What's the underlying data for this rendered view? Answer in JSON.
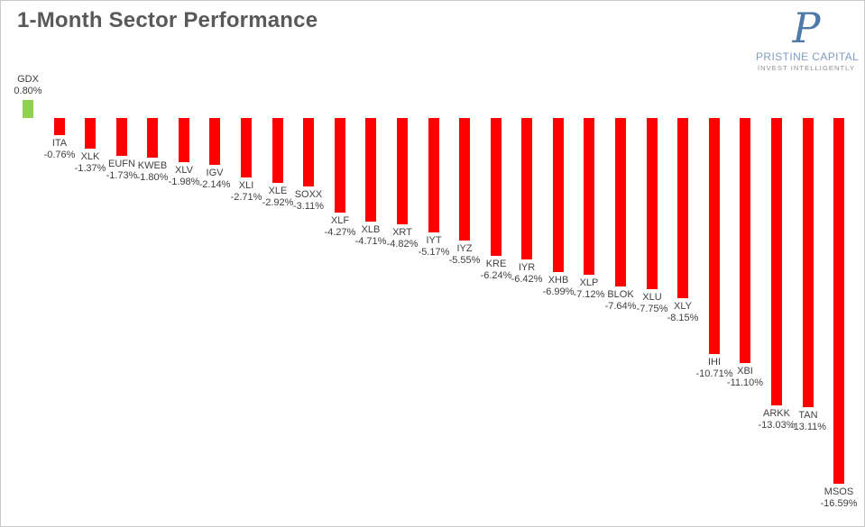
{
  "title": "1-Month Sector Performance",
  "logo": {
    "monogram": "P",
    "name": "PRISTINE CAPITAL",
    "tagline": "INVEST INTELLIGENTLY"
  },
  "chart_data": {
    "type": "bar",
    "title": "1-Month Sector Performance",
    "orientation": "vertical",
    "categories": [
      "GDX",
      "ITA",
      "XLK",
      "EUFN",
      "KWEB",
      "XLV",
      "IGV",
      "XLI",
      "XLE",
      "SOXX",
      "XLF",
      "XLB",
      "XRT",
      "IYT",
      "IYZ",
      "KRE",
      "IYR",
      "XHB",
      "XLP",
      "BLOK",
      "XLU",
      "XLY",
      "IHI",
      "XBI",
      "ARKK",
      "TAN",
      "MSOS"
    ],
    "values": [
      0.8,
      -0.76,
      -1.37,
      -1.73,
      -1.8,
      -1.98,
      -2.14,
      -2.71,
      -2.92,
      -3.11,
      -4.27,
      -4.71,
      -4.82,
      -5.17,
      -5.55,
      -6.24,
      -6.42,
      -6.99,
      -7.12,
      -7.64,
      -7.75,
      -8.15,
      -10.71,
      -11.1,
      -13.03,
      -13.11,
      -16.59
    ],
    "labels": [
      "0.80%",
      "-0.76%",
      "-1.37%",
      "-1.73%",
      "-1.80%",
      "-1.98%",
      "-2.14%",
      "-2.71%",
      "-2.92%",
      "-3.11%",
      "-4.27%",
      "-4.71%",
      "-4.82%",
      "-5.17%",
      "-5.55%",
      "-6.24%",
      "-6.42%",
      "-6.99%",
      "-7.12%",
      "-7.64%",
      "-7.75%",
      "-8.15%",
      "-10.71%",
      "-11.10%",
      "-13.03%",
      "-13.11%",
      "-16.59%"
    ],
    "colors": {
      "positive": "#92D050",
      "negative": "#FF0000"
    },
    "xlabel": "",
    "ylabel": "",
    "ylim": [
      -17,
      1
    ],
    "grid": false,
    "legend": false,
    "data_label_style": "ticker above percent, placed at the end of each bar"
  }
}
